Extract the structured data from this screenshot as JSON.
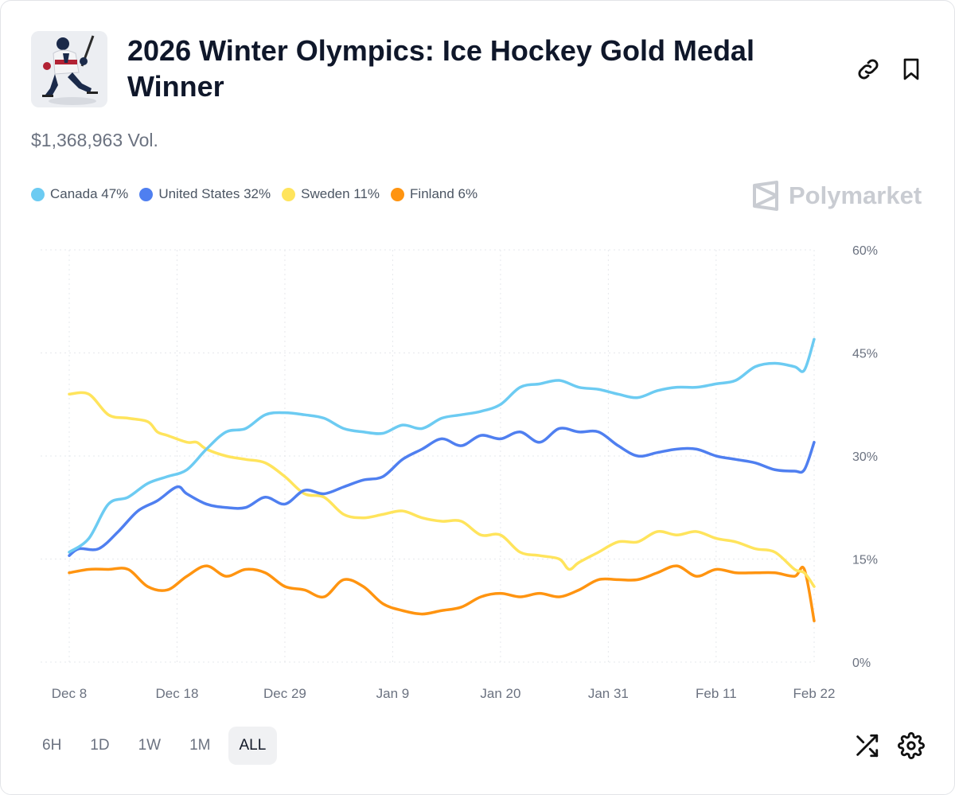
{
  "market": {
    "title": "2026 Winter Olympics: Ice Hockey Gold Medal Winner",
    "volume": "$1,368,963 Vol.",
    "brand": "Polymarket"
  },
  "legend": [
    {
      "label": "Canada 47%",
      "color": "#6CCBF2"
    },
    {
      "label": "United States 32%",
      "color": "#4F7FF0"
    },
    {
      "label": "Sweden 11%",
      "color": "#FFE45C"
    },
    {
      "label": "Finland 6%",
      "color": "#FF9410"
    }
  ],
  "ranges": [
    {
      "label": "6H",
      "active": false
    },
    {
      "label": "1D",
      "active": false
    },
    {
      "label": "1W",
      "active": false
    },
    {
      "label": "1M",
      "active": false
    },
    {
      "label": "ALL",
      "active": true
    }
  ],
  "icons": {
    "link": "link-icon",
    "bookmark": "bookmark-icon",
    "shuffle": "shuffle-icon",
    "settings": "gear-icon"
  },
  "chart_data": {
    "type": "line",
    "title": "",
    "xlabel": "",
    "ylabel": "",
    "x_domain": [
      0,
      76
    ],
    "ylim": [
      0,
      60
    ],
    "y_ticks": [
      0,
      15,
      30,
      45,
      60
    ],
    "y_tick_labels": [
      "0%",
      "15%",
      "30%",
      "45%",
      "60%"
    ],
    "x_ticks": [
      0,
      11,
      22,
      33,
      44,
      55,
      66,
      76
    ],
    "x_tick_labels": [
      "Dec 8",
      "Dec 18",
      "Dec 29",
      "Jan 9",
      "Jan 20",
      "Jan 31",
      "Feb 11",
      "Feb 22"
    ],
    "grid": true,
    "series": [
      {
        "name": "Canada",
        "color": "#6CCBF2",
        "x": [
          0,
          2,
          4,
          6,
          8,
          10,
          12,
          14,
          16,
          18,
          20,
          22,
          24,
          26,
          28,
          30,
          32,
          34,
          36,
          38,
          40,
          42,
          44,
          46,
          48,
          50,
          52,
          54,
          56,
          58,
          60,
          62,
          64,
          66,
          68,
          70,
          72,
          74,
          75,
          76
        ],
        "values": [
          16,
          18,
          23,
          24,
          26,
          27,
          28,
          31,
          33.5,
          34,
          36,
          36.3,
          36,
          35.5,
          34,
          33.5,
          33.3,
          34.5,
          34,
          35.5,
          36,
          36.5,
          37.5,
          40,
          40.5,
          41,
          40,
          39.7,
          39,
          38.5,
          39.5,
          40,
          40,
          40.5,
          41,
          43,
          43.5,
          43,
          42.5,
          47
        ]
      },
      {
        "name": "United States",
        "color": "#4F7FF0",
        "x": [
          0,
          1,
          3,
          5,
          7,
          9,
          11,
          12,
          14,
          16,
          18,
          20,
          22,
          24,
          26,
          28,
          30,
          32,
          34,
          36,
          38,
          40,
          42,
          44,
          46,
          48,
          50,
          52,
          54,
          56,
          58,
          60,
          62,
          64,
          66,
          68,
          70,
          72,
          74,
          75,
          76
        ],
        "values": [
          15.5,
          16.5,
          16.5,
          19,
          22,
          23.5,
          25.5,
          24.5,
          23,
          22.5,
          22.5,
          24,
          23,
          25,
          24.5,
          25.5,
          26.5,
          27,
          29.5,
          31,
          32.5,
          31.5,
          33,
          32.5,
          33.5,
          32,
          34,
          33.5,
          33.5,
          31.5,
          30,
          30.5,
          31,
          31,
          30,
          29.5,
          29,
          28,
          27.8,
          28,
          32
        ]
      },
      {
        "name": "Sweden",
        "color": "#FFE45C",
        "x": [
          0,
          2,
          4,
          6,
          8,
          9,
          10,
          12,
          13,
          14,
          16,
          18,
          20,
          22,
          24,
          26,
          28,
          30,
          32,
          34,
          36,
          38,
          40,
          42,
          44,
          46,
          48,
          50,
          51,
          52,
          54,
          56,
          58,
          60,
          62,
          64,
          66,
          68,
          70,
          72,
          74,
          75,
          76
        ],
        "values": [
          39,
          39,
          36,
          35.5,
          35,
          33.5,
          33,
          32,
          32,
          31,
          30,
          29.5,
          29,
          27,
          24.5,
          24,
          21.5,
          21,
          21.5,
          22,
          21,
          20.5,
          20.5,
          18.5,
          18.5,
          16,
          15.5,
          15,
          13.5,
          14.5,
          16,
          17.5,
          17.5,
          19,
          18.5,
          19,
          18,
          17.5,
          16.5,
          16,
          13.5,
          13,
          11
        ]
      },
      {
        "name": "Finland",
        "color": "#FF9410",
        "x": [
          0,
          2,
          4,
          6,
          8,
          10,
          12,
          14,
          16,
          18,
          20,
          22,
          24,
          26,
          28,
          30,
          32,
          34,
          36,
          38,
          40,
          42,
          44,
          46,
          48,
          50,
          52,
          54,
          56,
          58,
          60,
          62,
          64,
          66,
          68,
          70,
          72,
          74,
          75,
          76
        ],
        "values": [
          13,
          13.5,
          13.5,
          13.5,
          11,
          10.5,
          12.5,
          14,
          12.5,
          13.5,
          13,
          11,
          10.5,
          9.5,
          12,
          11,
          8.5,
          7.5,
          7,
          7.5,
          8,
          9.5,
          10,
          9.5,
          10,
          9.5,
          10.5,
          12,
          12,
          12,
          13,
          14,
          12.5,
          13.5,
          13,
          13,
          13,
          12.5,
          13.5,
          6
        ]
      }
    ]
  }
}
